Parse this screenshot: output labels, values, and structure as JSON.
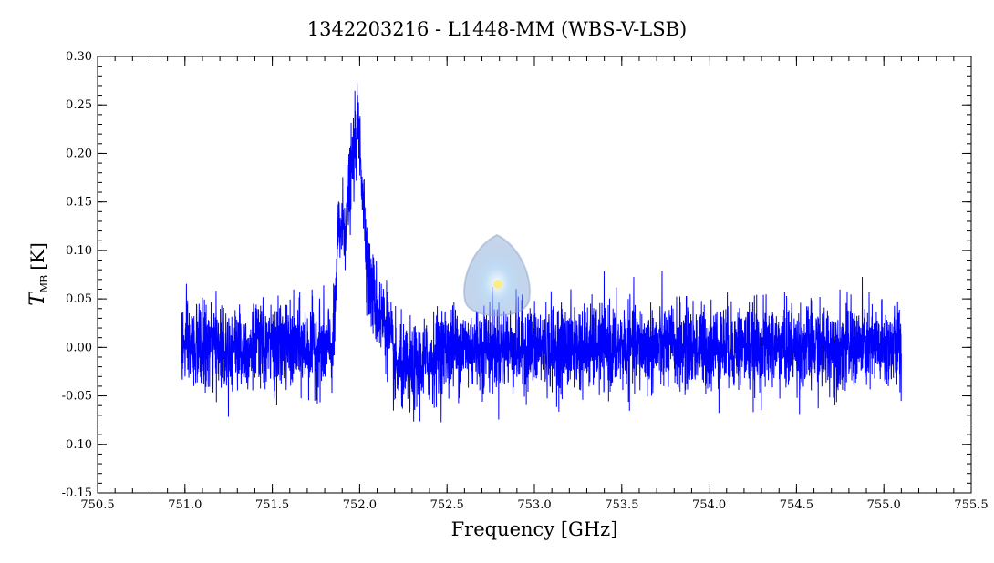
{
  "chart_data": {
    "type": "line",
    "title": "1342203216 - L1448-MM (WBS-V-LSB)",
    "xlabel": "Frequency [GHz]",
    "ylabel_main": "T",
    "ylabel_sub": "MB",
    "ylabel_unit": "[K]",
    "xlim": [
      750.5,
      755.5
    ],
    "ylim": [
      -0.15,
      0.3
    ],
    "x_ticks": [
      "750.5",
      "751.0",
      "751.5",
      "752.0",
      "752.5",
      "753.0",
      "753.5",
      "754.0",
      "754.5",
      "755.0",
      "755.5"
    ],
    "y_ticks": [
      "-0.15",
      "-0.10",
      "-0.05",
      "0.00",
      "0.05",
      "0.10",
      "0.15",
      "0.20",
      "0.25",
      "0.30"
    ],
    "grid": false,
    "series": [
      {
        "color": "#0000ff",
        "x_range": [
          750.98,
          755.1
        ],
        "noise_rms": 0.022,
        "profile": [
          {
            "x": 751.85,
            "y": 0.0
          },
          {
            "x": 751.88,
            "y": 0.12
          },
          {
            "x": 751.92,
            "y": 0.13
          },
          {
            "x": 751.96,
            "y": 0.19
          },
          {
            "x": 751.99,
            "y": 0.23
          },
          {
            "x": 752.02,
            "y": 0.16
          },
          {
            "x": 752.05,
            "y": 0.07
          },
          {
            "x": 752.1,
            "y": 0.04
          },
          {
            "x": 752.16,
            "y": 0.02
          },
          {
            "x": 752.2,
            "y": -0.02
          },
          {
            "x": 752.3,
            "y": -0.025
          },
          {
            "x": 752.5,
            "y": 0.0
          }
        ]
      }
    ]
  },
  "watermark": {
    "icon": "herschel-logo-icon"
  }
}
